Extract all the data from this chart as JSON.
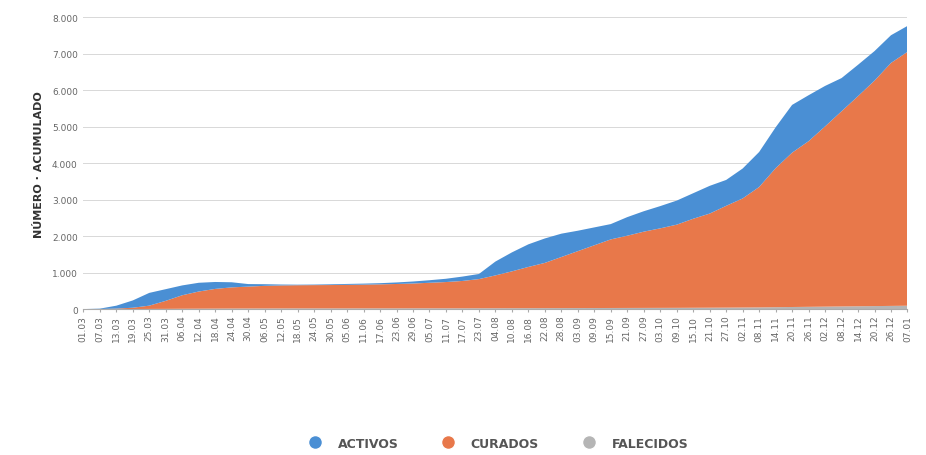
{
  "ylabel": "NÚMERO · ACUMULADO",
  "background_color": "#ffffff",
  "grid_color": "#d8d8d8",
  "color_activos": "#4a8fd4",
  "color_curados": "#e8784a",
  "color_falecidos": "#b5b5b5",
  "ylim": [
    0,
    8000
  ],
  "yticks": [
    0,
    1000,
    2000,
    3000,
    4000,
    5000,
    6000,
    7000,
    8000
  ],
  "ytick_labels": [
    "0",
    "1.000",
    "2.000",
    "3.000",
    "4.000",
    "5.000",
    "6.000",
    "7.000",
    "8.000"
  ],
  "dates": [
    "01.03",
    "07.03",
    "13.03",
    "19.03",
    "25.03",
    "31.03",
    "06.04",
    "12.04",
    "18.04",
    "24.04",
    "30.04",
    "06.05",
    "12.05",
    "18.05",
    "24.05",
    "30.05",
    "05.06",
    "11.06",
    "17.06",
    "23.06",
    "29.06",
    "05.07",
    "11.07",
    "17.07",
    "23.07",
    "04.08",
    "10.08",
    "16.08",
    "22.08",
    "28.08",
    "03.09",
    "09.09",
    "15.09",
    "21.09",
    "27.09",
    "03.10",
    "09.10",
    "15.10",
    "21.10",
    "27.10",
    "02.11",
    "08.11",
    "14.11",
    "20.11",
    "26.11",
    "02.12",
    "08.12",
    "14.12",
    "20.12",
    "26.12",
    "07.01"
  ],
  "activos": [
    0,
    10,
    80,
    200,
    350,
    320,
    270,
    240,
    190,
    140,
    70,
    45,
    25,
    15,
    15,
    20,
    25,
    28,
    32,
    42,
    55,
    70,
    90,
    120,
    140,
    380,
    520,
    620,
    670,
    640,
    560,
    490,
    420,
    510,
    560,
    610,
    660,
    700,
    760,
    710,
    820,
    960,
    1120,
    1310,
    1260,
    1110,
    910,
    860,
    810,
    760,
    710
  ],
  "curados": [
    0,
    2,
    12,
    35,
    90,
    220,
    370,
    470,
    540,
    580,
    600,
    620,
    630,
    635,
    638,
    640,
    645,
    650,
    658,
    668,
    680,
    700,
    720,
    750,
    800,
    900,
    1010,
    1130,
    1240,
    1400,
    1560,
    1720,
    1880,
    1980,
    2090,
    2180,
    2280,
    2440,
    2580,
    2790,
    2990,
    3300,
    3810,
    4230,
    4540,
    4940,
    5350,
    5760,
    6180,
    6660,
    6960
  ],
  "falecidos": [
    0,
    0,
    1,
    2,
    4,
    6,
    9,
    11,
    13,
    15,
    16,
    17,
    18,
    19,
    19,
    19,
    19,
    20,
    20,
    20,
    21,
    21,
    21,
    21,
    22,
    23,
    24,
    25,
    26,
    27,
    28,
    29,
    30,
    31,
    32,
    33,
    34,
    36,
    38,
    40,
    43,
    46,
    52,
    57,
    62,
    67,
    72,
    77,
    82,
    87,
    92
  ],
  "legend_labels": [
    "ACTIVOS",
    "CURADOS",
    "FALECIDOS"
  ],
  "legend_fontsize": 9,
  "tick_fontsize": 6.5,
  "ylabel_fontsize": 8
}
